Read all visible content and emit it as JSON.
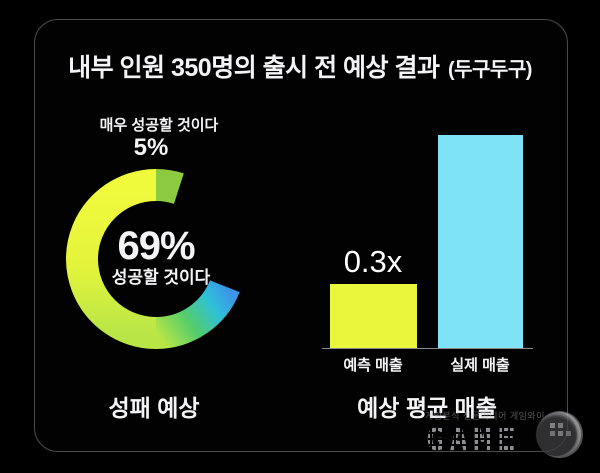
{
  "title": {
    "main": "내부 인원 350명의 출시 전 예상 결과",
    "paren": "(두구두구)"
  },
  "donut_section": {
    "callout_label": "매우 성공할 것이다",
    "callout_value": "5%",
    "center_value": "69%",
    "center_label": "성공할 것이다",
    "caption": "성패 예상"
  },
  "bar_section": {
    "annotation": "0.3x",
    "bars": [
      {
        "label": "예측 매출"
      },
      {
        "label": "실제 매출"
      }
    ],
    "caption": "예상 평균 매출"
  },
  "watermark": {
    "tagline": "게임분석 전문미디어 게임와이",
    "logo_text": "GAME"
  },
  "colors": {
    "background": "#000000",
    "card_border": "#4b4b4b",
    "text": "#f4f4f6",
    "donut_yellow": "#e9f63b",
    "donut_small_slice_green": "#8ccb40",
    "donut_end_cyan": "#2fc0da",
    "donut_end_blue": "#3b96e8",
    "bar_yellow": "#e9f63b",
    "bar_blue": "#7ee3f6",
    "axis_line": "#8b8b8b"
  },
  "chart_data": [
    {
      "type": "pie",
      "variant": "donut",
      "title": "성패 예상",
      "slices": [
        {
          "label": "성공할 것이다",
          "value": 69,
          "color": "gradient #e9f63b → #4ecb6a → #2fc0da → #3b96e8"
        },
        {
          "label": "매우 성공할 것이다",
          "value": 5,
          "color": "#8ccb40"
        },
        {
          "label": "",
          "value": 26,
          "color": "none"
        }
      ],
      "center_text": "69% 성공할 것이다",
      "legend_position": "none"
    },
    {
      "type": "bar",
      "title": "예상 평균 매출",
      "categories": [
        "예측 매출",
        "실제 매출"
      ],
      "values": [
        0.3,
        1.0
      ],
      "colors": [
        "#e9f63b",
        "#7ee3f6"
      ],
      "annotations": [
        {
          "category": "예측 매출",
          "text": "0.3x"
        }
      ],
      "xlabel": "",
      "ylabel": "",
      "ylim": [
        0,
        1.05
      ],
      "grid": false,
      "legend_position": "none"
    }
  ]
}
